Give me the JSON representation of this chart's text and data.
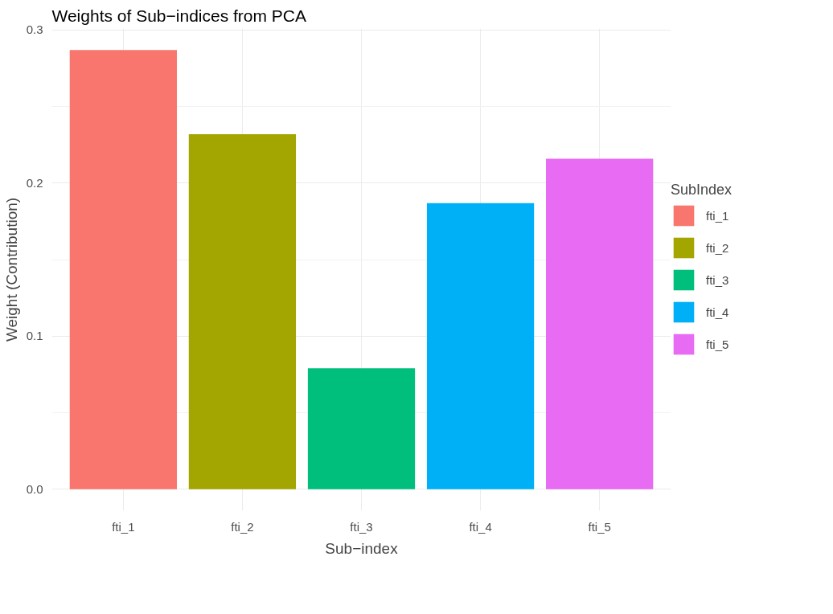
{
  "chart_data": {
    "type": "bar",
    "title": "Weights of Sub−indices from PCA",
    "xlabel": "Sub−index",
    "ylabel": "Weight (Contribution)",
    "legend_title": "SubIndex",
    "categories": [
      "fti_1",
      "fti_2",
      "fti_3",
      "fti_4",
      "fti_5"
    ],
    "series": [
      {
        "name": "fti_1",
        "color": "#f8766d",
        "values": [
          0.287,
          null,
          null,
          null,
          null
        ]
      },
      {
        "name": "fti_2",
        "color": "#a3a500",
        "values": [
          null,
          0.232,
          null,
          null,
          null
        ]
      },
      {
        "name": "fti_3",
        "color": "#00bf7d",
        "values": [
          null,
          null,
          0.079,
          null,
          null
        ]
      },
      {
        "name": "fti_4",
        "color": "#00b0f6",
        "values": [
          null,
          null,
          null,
          0.187,
          null
        ]
      },
      {
        "name": "fti_5",
        "color": "#e76bf3",
        "values": [
          null,
          null,
          null,
          null,
          0.216
        ]
      }
    ],
    "ylim": [
      -0.014,
      0.301
    ],
    "yticks": [
      {
        "value": 0,
        "label": "0.0"
      },
      {
        "value": 0.05,
        "label": null
      },
      {
        "value": 0.1,
        "label": "0.1"
      },
      {
        "value": 0.15,
        "label": null
      },
      {
        "value": 0.2,
        "label": "0.2"
      },
      {
        "value": 0.25,
        "label": null
      },
      {
        "value": 0.3,
        "label": "0.3"
      }
    ],
    "grid": true,
    "legend": "right"
  }
}
